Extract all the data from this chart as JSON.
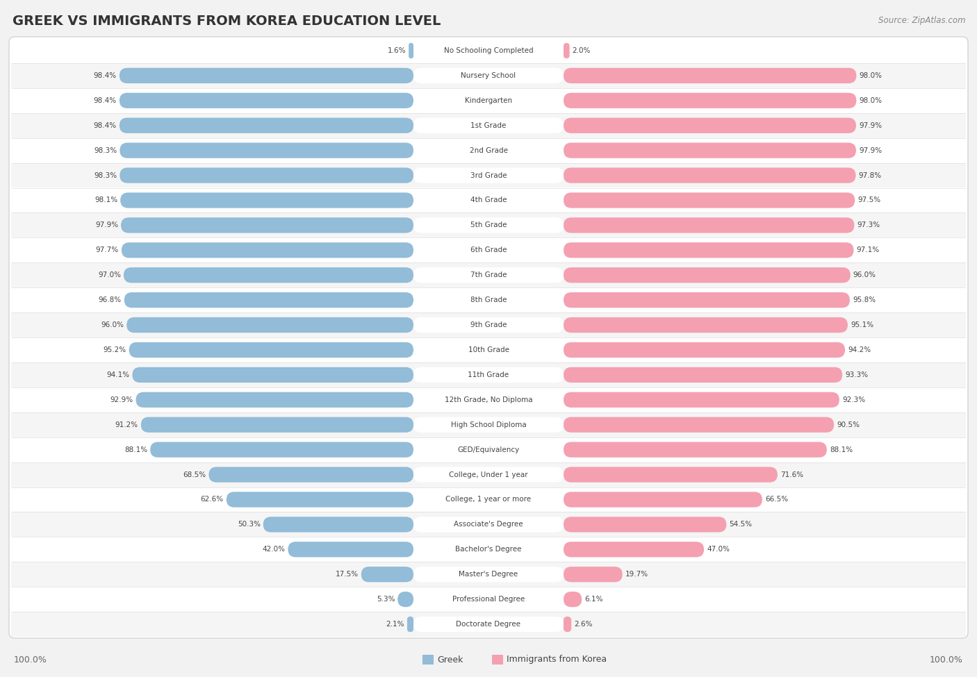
{
  "title": "GREEK VS IMMIGRANTS FROM KOREA EDUCATION LEVEL",
  "source": "Source: ZipAtlas.com",
  "categories": [
    "No Schooling Completed",
    "Nursery School",
    "Kindergarten",
    "1st Grade",
    "2nd Grade",
    "3rd Grade",
    "4th Grade",
    "5th Grade",
    "6th Grade",
    "7th Grade",
    "8th Grade",
    "9th Grade",
    "10th Grade",
    "11th Grade",
    "12th Grade, No Diploma",
    "High School Diploma",
    "GED/Equivalency",
    "College, Under 1 year",
    "College, 1 year or more",
    "Associate's Degree",
    "Bachelor's Degree",
    "Master's Degree",
    "Professional Degree",
    "Doctorate Degree"
  ],
  "greek_values": [
    1.6,
    98.4,
    98.4,
    98.4,
    98.3,
    98.3,
    98.1,
    97.9,
    97.7,
    97.0,
    96.8,
    96.0,
    95.2,
    94.1,
    92.9,
    91.2,
    88.1,
    68.5,
    62.6,
    50.3,
    42.0,
    17.5,
    5.3,
    2.1
  ],
  "korea_values": [
    2.0,
    98.0,
    98.0,
    97.9,
    97.9,
    97.8,
    97.5,
    97.3,
    97.1,
    96.0,
    95.8,
    95.1,
    94.2,
    93.3,
    92.3,
    90.5,
    88.1,
    71.6,
    66.5,
    54.5,
    47.0,
    19.7,
    6.1,
    2.6
  ],
  "greek_color": "#92bcd8",
  "korea_color": "#f4a0b0",
  "background_color": "#f2f2f2",
  "legend_greek": "Greek",
  "legend_korea": "Immigrants from Korea",
  "axis_label_left": "100.0%",
  "axis_label_right": "100.0%"
}
